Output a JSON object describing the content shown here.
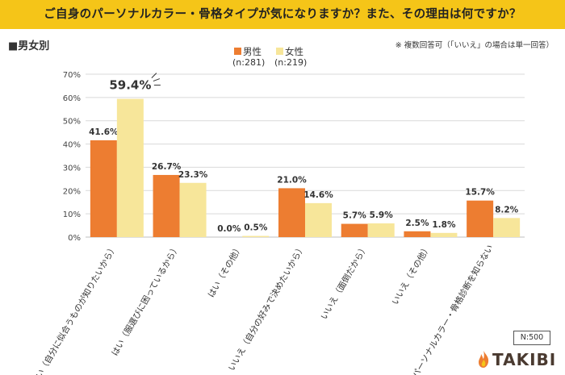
{
  "header": {
    "title": "ご自身のパーソナルカラー・骨格タイプが気になりますか？また、その理由は何ですか？"
  },
  "section_label": "■男女別",
  "footnote": "※ 複数回答可（「いいえ」の場合は単一回答）",
  "n_label": "N:500",
  "logo_text": "TAKIBI",
  "colors": {
    "male": "#ed7d31",
    "female": "#f7e69a",
    "header": "#f5c518"
  },
  "chart_data": {
    "type": "bar",
    "title": "",
    "xlabel": "",
    "ylabel": "",
    "ylim": [
      0,
      70
    ],
    "yticks": [
      "0%",
      "10%",
      "20%",
      "30%",
      "40%",
      "50%",
      "60%",
      "70%"
    ],
    "grid": true,
    "legend_position": "top-center",
    "categories": [
      "はい（自分に似合うものが知りたいから）",
      "はい（服選びに困っているから）",
      "はい（その他）",
      "いいえ（自分の好みで決めたいから）",
      "いいえ（面倒だから）",
      "いいえ（その他）",
      "パーソナルカラー・骨格診断を知らない"
    ],
    "series": [
      {
        "name": "男性",
        "n": "(n:281)",
        "values": [
          41.6,
          26.7,
          0.0,
          21.0,
          5.7,
          2.5,
          15.7
        ],
        "labels": [
          "41.6%",
          "26.7%",
          "0.0%",
          "21.0%",
          "5.7%",
          "2.5%",
          "15.7%"
        ]
      },
      {
        "name": "女性",
        "n": "(n:219)",
        "values": [
          59.4,
          23.3,
          0.5,
          14.6,
          5.9,
          1.8,
          8.2
        ],
        "labels": [
          "59.4%",
          "23.3%",
          "0.5%",
          "14.6%",
          "5.9%",
          "1.8%",
          "8.2%"
        ]
      }
    ]
  }
}
